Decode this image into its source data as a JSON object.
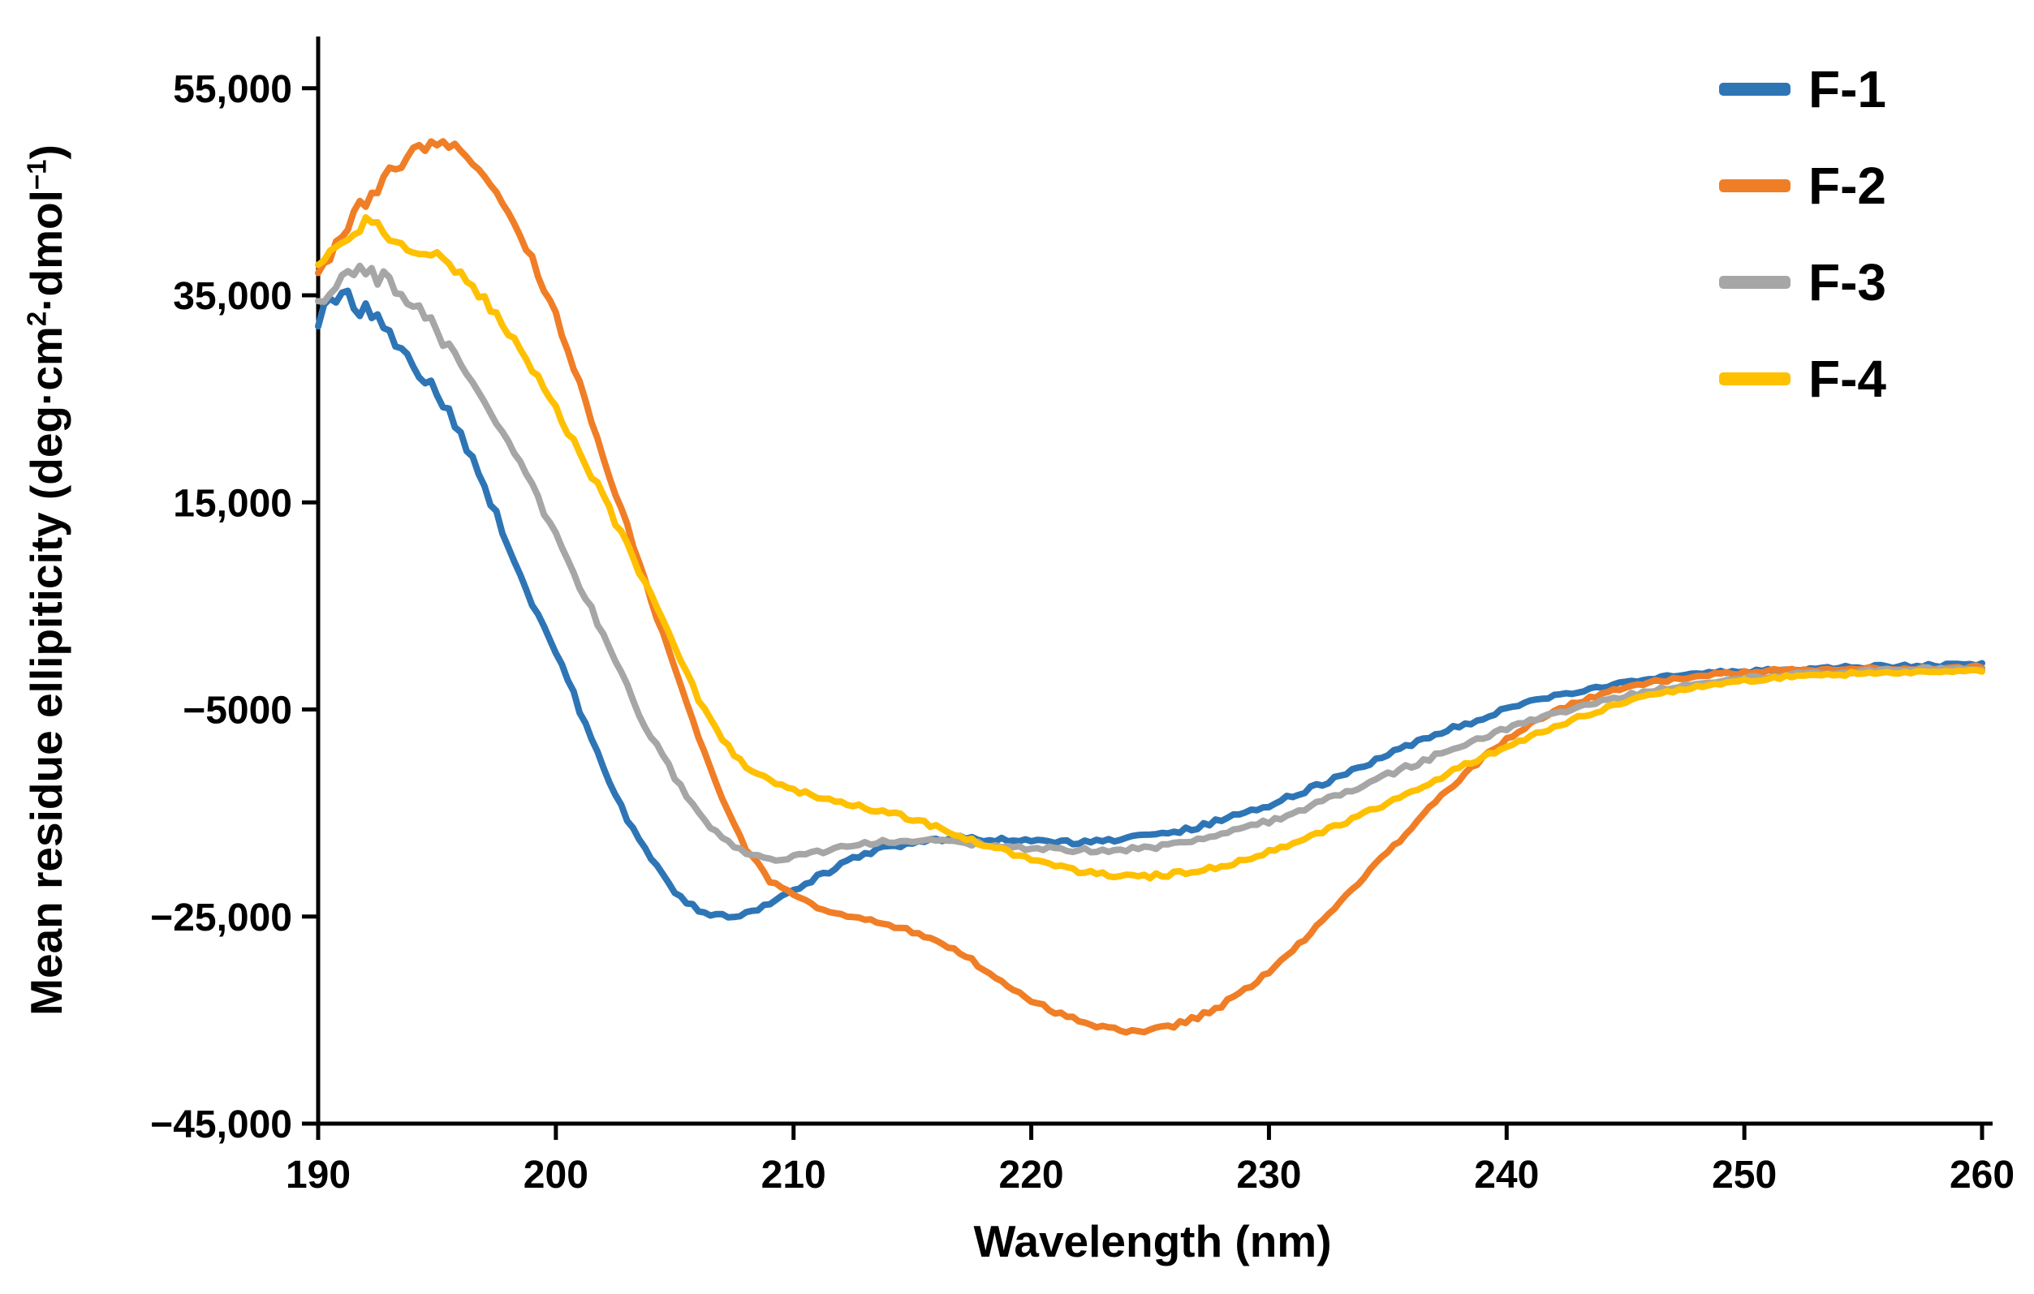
{
  "chart_data": {
    "type": "line",
    "title": "",
    "xlabel": "Wavelength (nm)",
    "ylabel": "Mean residue ellipiticity (deg·cm2·dmol-1)",
    "ylabel_parts": {
      "pre": "Mean residue ellipiticity (deg·cm",
      "sup1": "2",
      "mid": "·dmol",
      "sup2": "−1",
      "post": ")"
    },
    "xlim": [
      190,
      260
    ],
    "ylim": [
      -45000,
      60000
    ],
    "x_start": 190,
    "x_step": 1,
    "x_ticks": [
      190,
      200,
      210,
      220,
      230,
      240,
      250,
      260
    ],
    "x_tick_labels": [
      "190",
      "200",
      "210",
      "220",
      "230",
      "240",
      "250",
      "260"
    ],
    "y_ticks": [
      55000,
      35000,
      15000,
      -5000,
      -25000,
      -45000
    ],
    "y_tick_labels": [
      "55,000",
      "35,000",
      "15,000",
      "−5000",
      "−25,000",
      "−45,000"
    ],
    "grid": false,
    "legend_position": "top-right-inside",
    "axis_color": "#000000",
    "series": [
      {
        "name": "F-1",
        "color": "#2E75B6",
        "values": [
          33000,
          35500,
          33500,
          31000,
          28500,
          25500,
          21500,
          16500,
          11000,
          5500,
          500,
          -5000,
          -10500,
          -15500,
          -19500,
          -22500,
          -24500,
          -25000,
          -24700,
          -23800,
          -22500,
          -21200,
          -20000,
          -19000,
          -18300,
          -17800,
          -17500,
          -17400,
          -17500,
          -17600,
          -17700,
          -17800,
          -17800,
          -17700,
          -17500,
          -17200,
          -16800,
          -16300,
          -15700,
          -15000,
          -14200,
          -13300,
          -12400,
          -11400,
          -10400,
          -9400,
          -8400,
          -7500,
          -6600,
          -5800,
          -5000,
          -4300,
          -3700,
          -3200,
          -2800,
          -2400,
          -2100,
          -1800,
          -1600,
          -1400,
          -1300,
          -1200,
          -1100,
          -1000,
          -950,
          -900,
          -850,
          -800,
          -750,
          -700,
          -700
        ]
      },
      {
        "name": "F-2",
        "color": "#F07E26",
        "values": [
          36500,
          41000,
          44500,
          47000,
          48800,
          49500,
          48800,
          46500,
          43000,
          38500,
          33000,
          26500,
          19500,
          12500,
          5500,
          -1000,
          -7500,
          -13500,
          -18500,
          -21500,
          -23000,
          -24000,
          -24700,
          -25200,
          -25700,
          -26400,
          -27300,
          -28500,
          -30000,
          -31500,
          -33000,
          -34200,
          -35100,
          -35700,
          -36000,
          -36000,
          -35500,
          -34700,
          -33600,
          -32100,
          -30300,
          -28300,
          -26100,
          -23700,
          -21300,
          -18800,
          -16300,
          -13900,
          -11700,
          -9700,
          -7900,
          -6400,
          -5200,
          -4300,
          -3500,
          -2900,
          -2400,
          -2100,
          -1800,
          -1600,
          -1400,
          -1300,
          -1200,
          -1150,
          -1100,
          -1050,
          -1000,
          -1000,
          -950,
          -950,
          -900
        ]
      },
      {
        "name": "F-3",
        "color": "#A6A6A6",
        "values": [
          35000,
          36500,
          37200,
          36200,
          34200,
          31500,
          28500,
          25000,
          21000,
          16500,
          12000,
          7000,
          2000,
          -3000,
          -7500,
          -11500,
          -15000,
          -17500,
          -19000,
          -19500,
          -19300,
          -18800,
          -18400,
          -18000,
          -17800,
          -17700,
          -17700,
          -17800,
          -18000,
          -18200,
          -18400,
          -18500,
          -18600,
          -18600,
          -18500,
          -18300,
          -18000,
          -17600,
          -17100,
          -16500,
          -15800,
          -15000,
          -14100,
          -13200,
          -12300,
          -11300,
          -10400,
          -9500,
          -8600,
          -7700,
          -6900,
          -6100,
          -5400,
          -4800,
          -4200,
          -3700,
          -3200,
          -2800,
          -2500,
          -2200,
          -2000,
          -1800,
          -1600,
          -1500,
          -1400,
          -1300,
          -1200,
          -1150,
          -1100,
          -1050,
          -1000
        ]
      },
      {
        "name": "F-4",
        "color": "#FFC000",
        "values": [
          38000,
          40500,
          41800,
          40800,
          39600,
          38500,
          37000,
          34500,
          31500,
          28000,
          24000,
          20000,
          15500,
          11000,
          6000,
          1000,
          -4000,
          -8000,
          -10500,
          -12000,
          -12800,
          -13400,
          -14000,
          -14500,
          -15000,
          -15600,
          -16400,
          -17200,
          -18000,
          -18800,
          -19500,
          -20100,
          -20600,
          -20900,
          -21100,
          -21100,
          -20900,
          -20600,
          -20100,
          -19500,
          -18800,
          -18000,
          -17100,
          -16100,
          -15100,
          -14000,
          -12900,
          -11800,
          -10700,
          -9600,
          -8600,
          -7600,
          -6700,
          -5800,
          -5000,
          -4300,
          -3700,
          -3200,
          -2800,
          -2500,
          -2200,
          -2000,
          -1800,
          -1700,
          -1600,
          -1500,
          -1450,
          -1400,
          -1350,
          -1300,
          -1300
        ]
      }
    ]
  }
}
